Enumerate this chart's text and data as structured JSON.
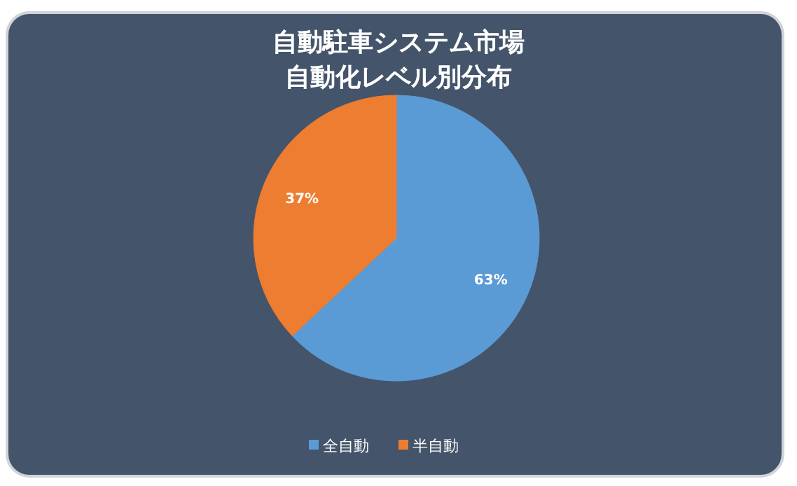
{
  "chart_data": {
    "type": "pie",
    "title": "自動駐車システム市場",
    "subtitle": "自動化レベル別分布",
    "categories": [
      "全自動",
      "半自動"
    ],
    "values": [
      63,
      37
    ],
    "value_labels": [
      "63%",
      "37%"
    ],
    "colors": [
      "#5b9bd5",
      "#ed7d31"
    ],
    "legend": "bottom"
  }
}
